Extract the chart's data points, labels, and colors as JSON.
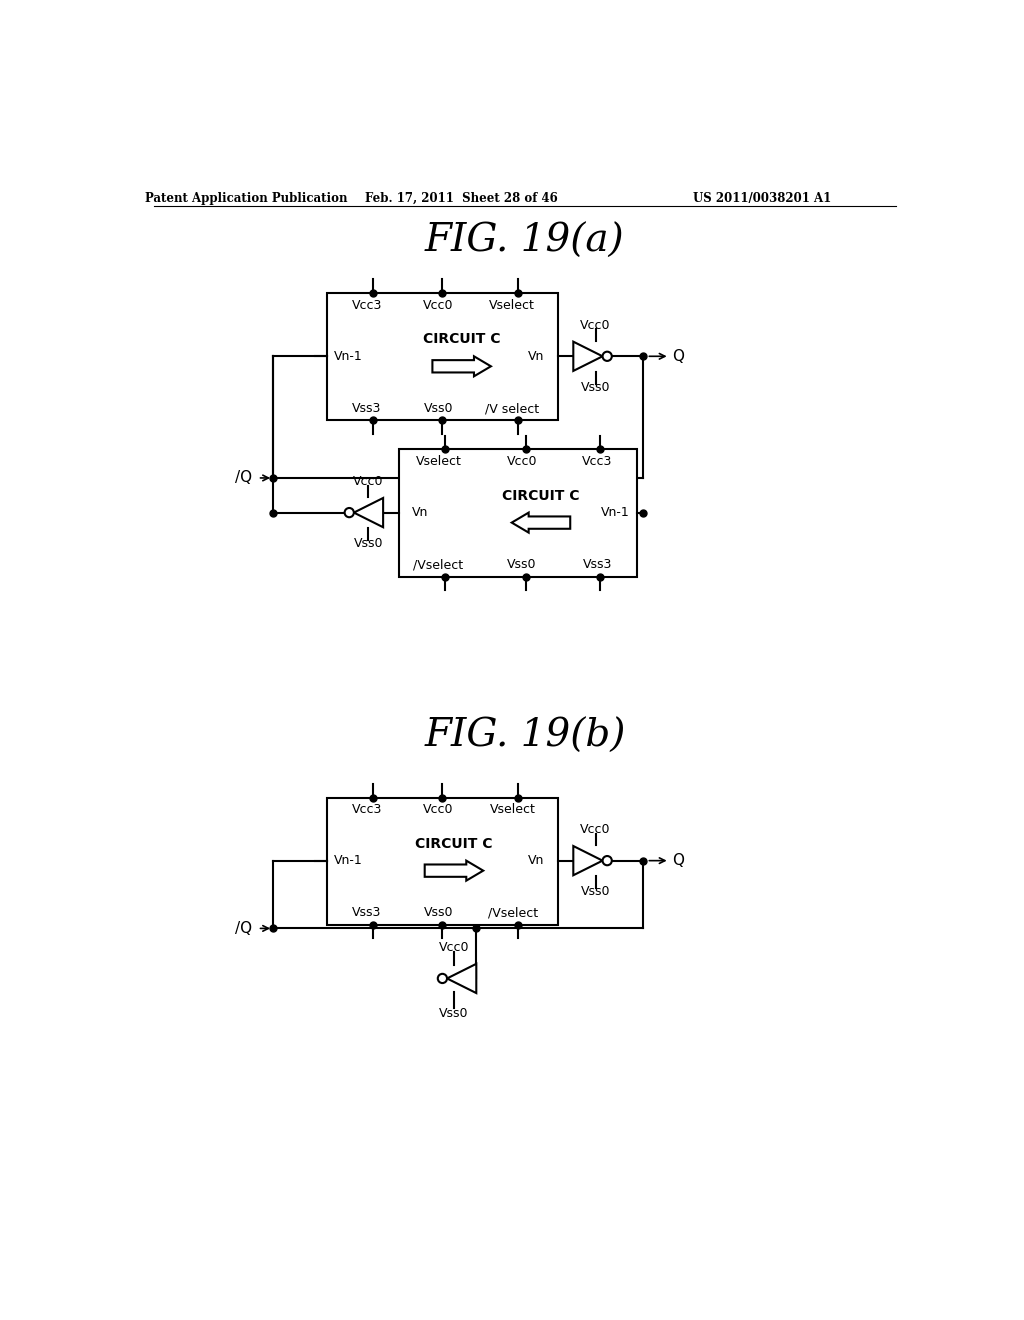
{
  "bg_color": "#ffffff",
  "text_color": "#000000",
  "header_left": "Patent Application Publication",
  "header_center": "Feb. 17, 2011  Sheet 28 of 46",
  "header_right": "US 2011/0038201 A1",
  "fig_title_a": "FIG. 19(a)",
  "fig_title_b": "FIG. 19(b)",
  "line_color": "#000000",
  "line_width": 1.5
}
